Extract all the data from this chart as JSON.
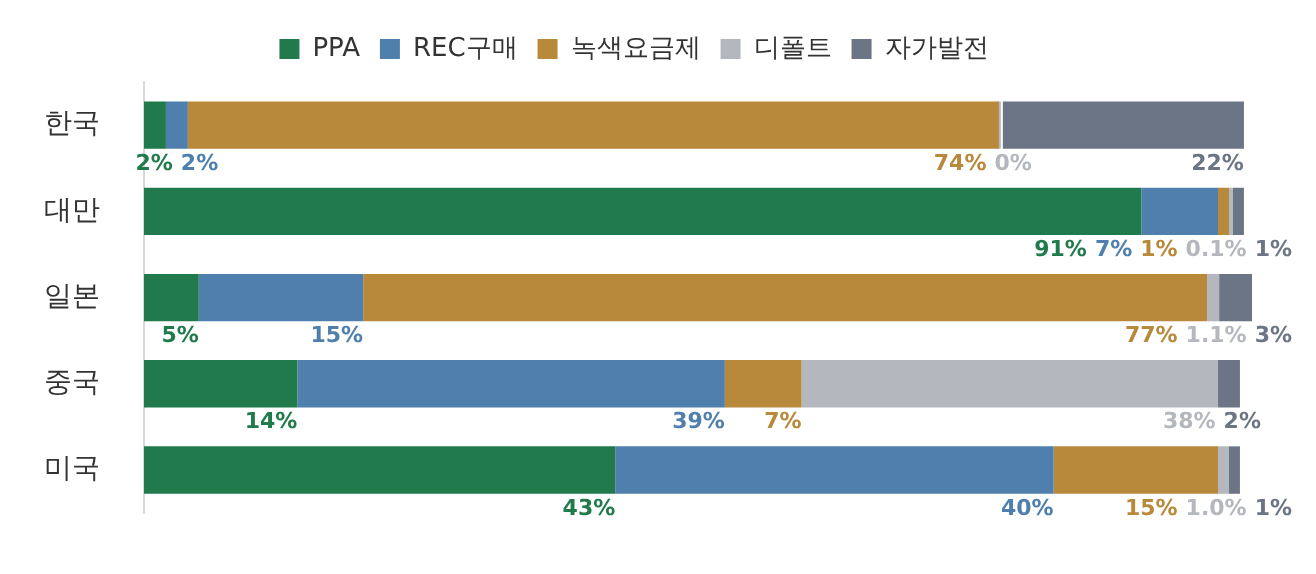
{
  "chart_data": {
    "type": "bar",
    "orientation": "horizontal",
    "stacked": true,
    "legend": "top",
    "categories": [
      "한국",
      "대만",
      "일본",
      "중국",
      "미국"
    ],
    "series": [
      {
        "name": "PPA",
        "color": "#217a4c",
        "values": [
          2,
          91,
          5,
          14,
          43
        ],
        "value_labels": [
          "2%",
          "91%",
          "5%",
          "14%",
          "43%"
        ]
      },
      {
        "name": "REC구매",
        "color": "#4f7fac",
        "values": [
          2,
          7,
          15,
          39,
          40
        ],
        "value_labels": [
          "2%",
          "7%",
          "15%",
          "39%",
          "40%"
        ]
      },
      {
        "name": "녹색요금제",
        "color": "#b8893a",
        "values": [
          74,
          1,
          77,
          7,
          15
        ],
        "value_labels": [
          "74%",
          "1%",
          "77%",
          "7%",
          "15%"
        ]
      },
      {
        "name": "디폴트",
        "color": "#b4b7bd",
        "values": [
          0,
          0.1,
          1.1,
          38,
          1.0
        ],
        "value_labels": [
          "0%",
          "0.1%",
          "1.1%",
          "38%",
          "1.0%"
        ]
      },
      {
        "name": "자가발전",
        "color": "#6b7585",
        "values": [
          22,
          1,
          3,
          2,
          1
        ],
        "value_labels": [
          "22%",
          "1%",
          "3%",
          "2%",
          "1%"
        ]
      }
    ]
  }
}
